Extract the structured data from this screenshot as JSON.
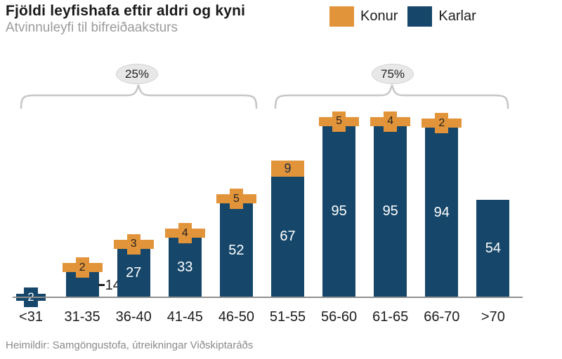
{
  "header": {
    "title": "Fjöldi leyfishafa eftir aldri og kyni",
    "subtitle": "Atvinnuleyfi til bifreiðaaksturs"
  },
  "legend": [
    {
      "label": "Konur",
      "color": "#E2943A"
    },
    {
      "label": "Karlar",
      "color": "#16476A"
    }
  ],
  "chart_data": {
    "type": "bar",
    "stacked": true,
    "title": "Fjöldi leyfishafa eftir aldri og kyni",
    "subtitle": "Atvinnuleyfi til bifreiðaaksturs",
    "xlabel": "",
    "ylabel": "",
    "categories": [
      "<31",
      "31-35",
      "36-40",
      "41-45",
      "46-50",
      "51-55",
      "56-60",
      "61-65",
      "66-70",
      ">70"
    ],
    "series": [
      {
        "name": "Karlar",
        "color": "#16476A",
        "values": [
          2,
          14,
          27,
          33,
          52,
          67,
          95,
          95,
          94,
          54
        ]
      },
      {
        "name": "Konur",
        "color": "#E2943A",
        "values": [
          null,
          2,
          3,
          4,
          5,
          9,
          5,
          4,
          2,
          null
        ]
      }
    ],
    "groups": [
      {
        "label": "25%",
        "categories": [
          "<31",
          "31-35",
          "36-40",
          "41-45",
          "46-50"
        ]
      },
      {
        "label": "75%",
        "categories": [
          "51-55",
          "56-60",
          "61-65",
          "66-70",
          ">70"
        ]
      }
    ],
    "legend_position": "top-right",
    "grid": false,
    "y_axis_visible": false
  },
  "footer": {
    "source": "Heimildir: Samgöngustofa, útreikningar Viðskiptaráðs"
  }
}
